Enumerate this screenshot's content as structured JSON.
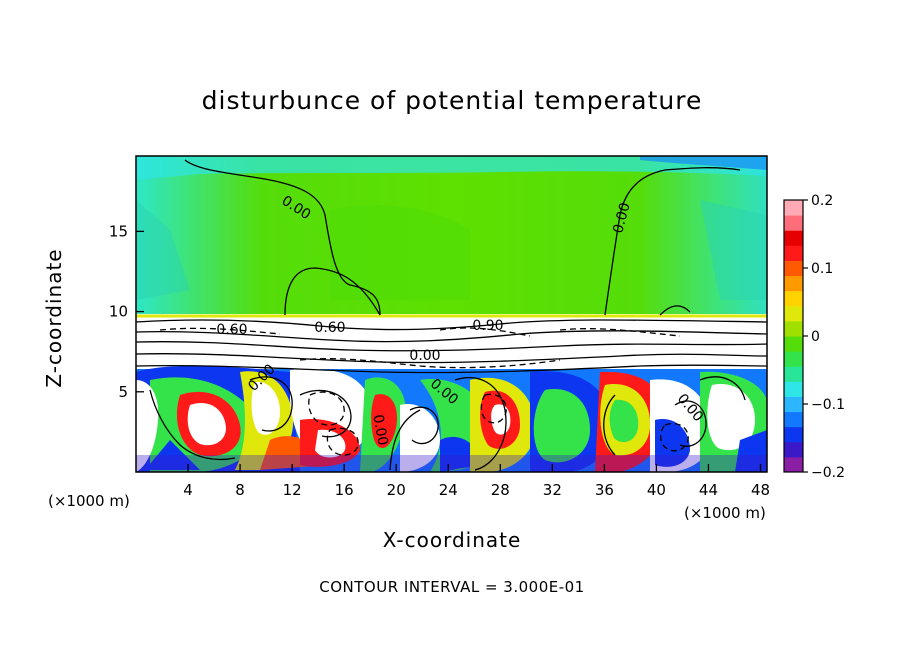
{
  "chart_data": {
    "type": "heatmap",
    "title": "disturbunce of potential temperature",
    "xlabel": "X-coordinate",
    "ylabel": "Z-coordinate",
    "x_unit_label_left": "(×1000 m)",
    "x_unit_label_right": "(×1000 m)",
    "x_ticks": [
      "4",
      "8",
      "12",
      "16",
      "20",
      "24",
      "28",
      "32",
      "36",
      "40",
      "44",
      "48"
    ],
    "x_tick_values": [
      4,
      8,
      12,
      16,
      20,
      24,
      28,
      32,
      36,
      40,
      44,
      48
    ],
    "y_ticks": [
      "5",
      "10",
      "15"
    ],
    "y_tick_values": [
      5,
      10,
      15
    ],
    "xlim": [
      0,
      48.5
    ],
    "ylim": [
      0,
      19.7
    ],
    "colorbar": {
      "min": -0.2,
      "max": 0.2,
      "tick_labels": [
        "0.2",
        "0.1",
        "0",
        "−0.1",
        "−0.2"
      ],
      "tick_values": [
        0.2,
        0.1,
        0,
        -0.1,
        -0.2
      ],
      "colors": [
        "#8a1fa6",
        "#3b18c8",
        "#0d36f0",
        "#1279ff",
        "#2cb6ff",
        "#2ee6e6",
        "#28e59a",
        "#34e34a",
        "#55dd0a",
        "#9fe000",
        "#dfe80a",
        "#ffd200",
        "#ff9900",
        "#ff5a00",
        "#ff1a1a",
        "#e60000",
        "#ff6e7a",
        "#ffaab4"
      ]
    },
    "contour_labels": [
      "0.00",
      "0.00",
      "0.60",
      "0.60",
      "0.90",
      "0.00",
      "0.00",
      "0.00",
      "0.00",
      "0.00"
    ],
    "contour_interval": "CONTOUR INTERVAL = 3.000E-01"
  }
}
